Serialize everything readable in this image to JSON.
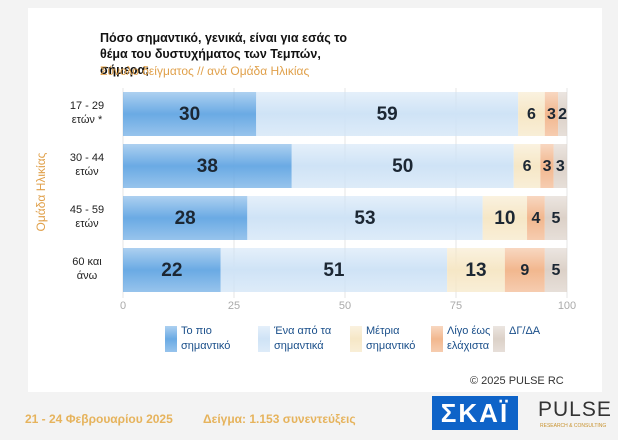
{
  "chart_data": {
    "type": "stacked-bar-horizontal",
    "title": "Πόσο σημαντικό, γενικά, είναι για εσάς το θέμα του δυστυχήματος των Τεμπών, σήμερα;",
    "subtitle": "Σύνολο δείγματος // ανά Ομάδα Ηλικίας",
    "y_label": "Ομάδα Ηλικίας",
    "categories": [
      "17 - 29 ετών *",
      "30 - 44 ετών",
      "45 - 59 ετών",
      "60 και άνω"
    ],
    "series": [
      {
        "name": "Το πιο σημαντικό",
        "color": "#6aaae4",
        "values": [
          30,
          38,
          28,
          22
        ]
      },
      {
        "name": "Ένα από τα σημαντικά",
        "color": "#cfe3f6",
        "values": [
          59,
          50,
          53,
          51
        ]
      },
      {
        "name": "Μέτρια σημαντικό",
        "color": "#f6e7c6",
        "values": [
          6,
          6,
          10,
          13
        ]
      },
      {
        "name": "Λίγο έως ελάχιστα",
        "color": "#f2b78e",
        "values": [
          3,
          3,
          4,
          9
        ]
      },
      {
        "name": "ΔΓ/ΔΑ",
        "color": "#dcd1c8",
        "values": [
          2,
          3,
          5,
          5
        ]
      }
    ],
    "xlim": [
      0,
      100
    ],
    "xticks": [
      0,
      25,
      50,
      75,
      100
    ],
    "grid": true,
    "copyright": "© 2025 PULSE RC",
    "footer_date": "21 - 24 Φεβρουαρίου 2025",
    "footer_sample": "Δείγμα:  1.153 συνεντεύξεις",
    "logo_left": "ΣΚΑΪ",
    "logo_right": "PULSE",
    "logo_right_sub": "RESEARCH & CONSULTING"
  }
}
